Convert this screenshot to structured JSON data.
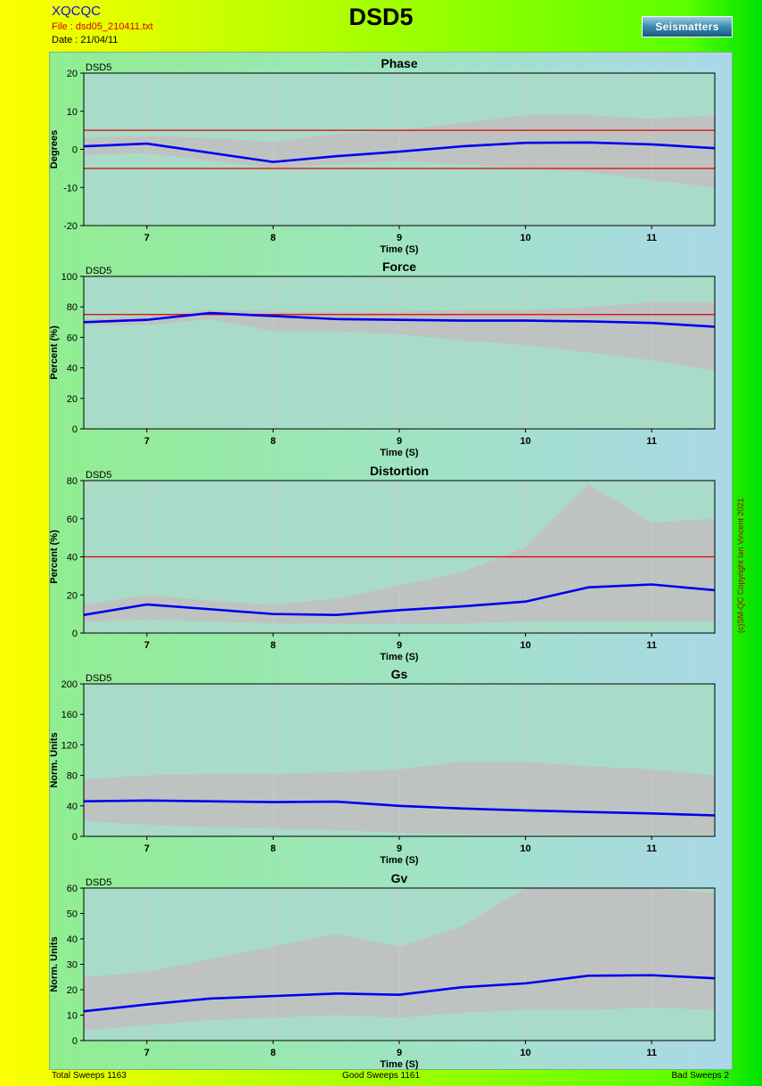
{
  "header": {
    "app_name": "XQCQC",
    "file_label": "File : dsd05_210411.txt",
    "date_label": "Date : 21/04/11",
    "title": "DSD5",
    "logo_text": "Seismatters"
  },
  "footer": {
    "total": "Total Sweeps 1163",
    "good": "Good Sweeps 1161",
    "bad": "Bad Sweeps 2"
  },
  "copyright": "(c)SM-QC Copyright Ian Vincent 2021",
  "colors": {
    "mean_line": "#0000ee",
    "limit_line": "#dd0000",
    "sweep_band": "#c0c0c0",
    "plot_bg": "#a8dcc8"
  },
  "chart_data": [
    {
      "type": "line",
      "title": "Phase",
      "corner_label": "DSD5",
      "xlabel": "Time (S)",
      "ylabel": "Degrees",
      "xlim": [
        6.5,
        11.5
      ],
      "ylim": [
        -20,
        20
      ],
      "xticks": [
        7,
        8,
        9,
        10,
        11
      ],
      "yticks": [
        -20,
        -10,
        0,
        10,
        20
      ],
      "grid": true,
      "limits": [
        5,
        -5
      ],
      "band": {
        "x": [
          6.5,
          7,
          7.5,
          8,
          8.5,
          9,
          9.5,
          10,
          10.5,
          11,
          11.5
        ],
        "low": [
          -1.5,
          -1,
          -3,
          -5,
          -4,
          -3,
          -4,
          -5,
          -6,
          -8,
          -10
        ],
        "high": [
          3,
          3.5,
          3,
          2,
          4,
          5,
          7,
          9,
          9,
          8,
          9
        ]
      },
      "series": [
        {
          "x": [
            6.5,
            7,
            8,
            8.5,
            9,
            9.5,
            10,
            10.5,
            11,
            11.5
          ],
          "y": [
            0.8,
            1.5,
            -3.3,
            -1.8,
            -0.6,
            0.8,
            1.7,
            1.8,
            1.3,
            0.3
          ]
        }
      ]
    },
    {
      "type": "line",
      "title": "Force",
      "corner_label": "DSD5",
      "xlabel": "Time (S)",
      "ylabel": "Percent (%)",
      "xlim": [
        6.5,
        11.5
      ],
      "ylim": [
        0,
        100
      ],
      "xticks": [
        7,
        8,
        9,
        10,
        11
      ],
      "yticks": [
        0,
        20,
        40,
        60,
        80,
        100
      ],
      "grid": true,
      "limits": [
        75
      ],
      "band": {
        "x": [
          6.5,
          7,
          7.5,
          8,
          8.5,
          9,
          9.5,
          10,
          10.5,
          11,
          11.5
        ],
        "low": [
          68,
          68,
          72,
          64,
          64,
          62,
          58,
          55,
          50,
          45,
          38
        ],
        "high": [
          72,
          74,
          78,
          77,
          77,
          77,
          78,
          78,
          80,
          83,
          83
        ]
      },
      "series": [
        {
          "x": [
            6.5,
            7,
            7.5,
            8,
            8.5,
            9,
            9.5,
            10,
            10.5,
            11,
            11.5
          ],
          "y": [
            70,
            71.5,
            76,
            74,
            72,
            71.5,
            71,
            71,
            70.5,
            69.5,
            67
          ]
        }
      ]
    },
    {
      "type": "line",
      "title": "Distortion",
      "corner_label": "DSD5",
      "xlabel": "Time (S)",
      "ylabel": "Percent (%)",
      "xlim": [
        6.5,
        11.5
      ],
      "ylim": [
        0,
        80
      ],
      "xticks": [
        7,
        8,
        9,
        10,
        11
      ],
      "yticks": [
        0,
        20,
        40,
        60,
        80
      ],
      "grid": true,
      "limits": [
        40
      ],
      "band": {
        "x": [
          6.5,
          7,
          7.5,
          8,
          8.5,
          9,
          9.5,
          10,
          10.5,
          11,
          11.5
        ],
        "low": [
          6,
          7,
          6,
          5,
          5,
          5,
          5,
          6,
          6,
          6,
          6
        ],
        "high": [
          15,
          20,
          17,
          15,
          18,
          25,
          32,
          45,
          78,
          58,
          60
        ]
      },
      "series": [
        {
          "x": [
            6.5,
            7,
            8,
            8.5,
            9,
            9.5,
            10,
            10.5,
            11,
            11.5
          ],
          "y": [
            9.5,
            15,
            10,
            9.5,
            12,
            14,
            16.5,
            24,
            25.5,
            22.5
          ]
        }
      ]
    },
    {
      "type": "line",
      "title": "Gs",
      "corner_label": "DSD5",
      "xlabel": "Time (S)",
      "ylabel": "Norm. Units",
      "xlim": [
        6.5,
        11.5
      ],
      "ylim": [
        0,
        200
      ],
      "xticks": [
        7,
        8,
        9,
        10,
        11
      ],
      "yticks": [
        0,
        40,
        80,
        120,
        160,
        200
      ],
      "grid": true,
      "limits": [],
      "band": {
        "x": [
          6.5,
          7,
          7.5,
          8,
          8.5,
          9,
          9.5,
          10,
          10.5,
          11,
          11.5
        ],
        "low": [
          20,
          15,
          12,
          10,
          8,
          5,
          3,
          2,
          2,
          2,
          2
        ],
        "high": [
          75,
          80,
          82,
          82,
          84,
          88,
          98,
          98,
          92,
          88,
          80
        ]
      },
      "series": [
        {
          "x": [
            6.5,
            7,
            8,
            8.5,
            9,
            9.5,
            10,
            10.5,
            11,
            11.5
          ],
          "y": [
            46,
            47,
            45,
            45.5,
            40,
            36.5,
            34,
            32,
            30,
            27.5
          ]
        }
      ]
    },
    {
      "type": "line",
      "title": "Gv",
      "corner_label": "DSD5",
      "xlabel": "Time (S)",
      "ylabel": "Norm. Units",
      "xlim": [
        6.5,
        11.5
      ],
      "ylim": [
        0,
        60
      ],
      "xticks": [
        7,
        8,
        9,
        10,
        11
      ],
      "yticks": [
        0,
        10,
        20,
        30,
        40,
        50,
        60
      ],
      "grid": true,
      "limits": [],
      "band": {
        "x": [
          6.5,
          7,
          7.5,
          8,
          8.5,
          9,
          9.5,
          10,
          10.5,
          11,
          11.5
        ],
        "low": [
          4,
          6,
          8,
          9,
          10,
          9,
          11,
          12,
          12,
          13,
          12
        ],
        "high": [
          25,
          27,
          32,
          37,
          42,
          37,
          45,
          60,
          60,
          60,
          58
        ]
      },
      "series": [
        {
          "x": [
            6.5,
            7,
            7.5,
            8,
            8.5,
            9,
            9.5,
            10,
            10.5,
            11,
            11.5
          ],
          "y": [
            11.5,
            14.2,
            16.5,
            17.5,
            18.5,
            18,
            21,
            22.5,
            25.5,
            25.7,
            24.5
          ]
        }
      ]
    }
  ]
}
